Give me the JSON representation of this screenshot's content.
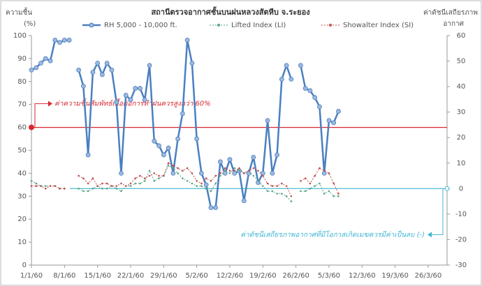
{
  "chart_data": {
    "type": "line",
    "title": "สถานีตรวจอากาศชั้นบนฝนหลวงสัตหีบ จ.ระยอง",
    "ylabel": [
      "ความชื้น",
      "(%)"
    ],
    "y2label": [
      "ค่าดัชนีเสถียรภาพ",
      "อากาศ"
    ],
    "x": [
      0,
      1,
      2,
      3,
      4,
      5,
      6,
      7,
      8,
      9,
      10,
      11,
      12,
      13,
      14,
      15,
      16,
      17,
      18,
      19,
      20,
      21,
      22,
      23,
      24,
      25,
      26,
      27,
      28,
      29,
      30,
      31,
      32,
      33,
      34,
      35,
      36,
      37,
      38,
      39,
      40,
      41,
      42,
      43,
      44,
      45,
      46,
      47,
      48,
      49,
      50,
      51,
      52,
      53,
      54,
      55,
      56,
      57,
      58,
      59,
      60,
      61,
      62,
      63,
      64,
      65
    ],
    "xlim": [
      0,
      88
    ],
    "xticks": [
      {
        "value": 0,
        "label": "1/1/60"
      },
      {
        "value": 7,
        "label": "8/1/60"
      },
      {
        "value": 14,
        "label": "15/1/60"
      },
      {
        "value": 21,
        "label": "22/1/60"
      },
      {
        "value": 28,
        "label": "29/1/60"
      },
      {
        "value": 35,
        "label": "5/2/60"
      },
      {
        "value": 42,
        "label": "12/2/60"
      },
      {
        "value": 49,
        "label": "19/2/60"
      },
      {
        "value": 56,
        "label": "26/2/60"
      },
      {
        "value": 63,
        "label": "5/3/60"
      },
      {
        "value": 70,
        "label": "12/3/60"
      },
      {
        "value": 77,
        "label": "19/3/60"
      },
      {
        "value": 84,
        "label": "26/3/60"
      }
    ],
    "ylim": [
      0,
      100
    ],
    "yticks": [
      0,
      10,
      20,
      30,
      40,
      50,
      60,
      70,
      80,
      90,
      100
    ],
    "y2lim": [
      -30,
      60
    ],
    "y2ticks": [
      -30,
      -20,
      -10,
      0,
      10,
      20,
      30,
      40,
      50,
      60
    ],
    "legend": "top",
    "series": [
      {
        "name": "RH 5,000 - 10,000 ft.",
        "color": "#4a7fc1",
        "axis": "y",
        "style": "solid",
        "values": [
          85,
          86,
          88,
          90,
          89,
          98,
          97,
          98,
          98,
          null,
          85,
          78,
          48,
          84,
          88,
          83,
          88,
          85,
          71,
          40,
          74,
          72,
          77,
          77,
          72,
          87,
          54,
          52,
          48,
          51,
          40,
          55,
          66,
          98,
          88,
          55,
          40,
          35,
          25,
          25,
          45,
          40,
          46,
          40,
          41,
          28,
          40,
          47,
          36,
          40,
          63,
          40,
          48,
          81,
          87,
          81,
          null,
          87,
          77,
          76,
          73,
          69,
          40,
          63,
          62,
          67
        ]
      },
      {
        "name": "Lifted Index (LI)",
        "color": "#5aa58a",
        "axis": "y2",
        "style": "dotted",
        "values": [
          3,
          2,
          1,
          1,
          1,
          1,
          0,
          0,
          null,
          null,
          0,
          -1,
          -1,
          0,
          1,
          0,
          0,
          1,
          0,
          -1,
          1,
          1,
          2,
          2,
          3,
          7,
          3,
          4,
          5,
          9,
          8,
          6,
          4,
          3,
          2,
          1,
          1,
          0,
          -1,
          2,
          5,
          7,
          6,
          8,
          7,
          6,
          7,
          5,
          3,
          1,
          -1,
          -1,
          -2,
          -2,
          -3,
          -5,
          null,
          -1,
          -1,
          0,
          1,
          2,
          -2,
          -1,
          -3,
          -3
        ]
      },
      {
        "name": "Showalter Index (SI)",
        "color": "#c0504d",
        "axis": "y2",
        "style": "dotted",
        "values": [
          1,
          1,
          1,
          0,
          1,
          1,
          0,
          0,
          null,
          null,
          5,
          4,
          2,
          4,
          1,
          2,
          2,
          1,
          1,
          2,
          1,
          2,
          4,
          5,
          4,
          5,
          6,
          5,
          5,
          10,
          9,
          8,
          7,
          8,
          6,
          3,
          2,
          4,
          3,
          5,
          6,
          8,
          7,
          7,
          8,
          6,
          7,
          8,
          7,
          5,
          2,
          1,
          1,
          2,
          1,
          -3,
          null,
          3,
          4,
          2,
          5,
          8,
          7,
          6,
          2,
          -2
        ]
      }
    ],
    "annotations": [
      {
        "text": "ค่าความชื้นสัมพัทธ์เอื้อต่อการทำฝนควรสูงกว่า 60%",
        "value": 60,
        "axis": "y",
        "color": "#d9282f"
      },
      {
        "text": "ค่าดัชนีเสถียรภาพอากาศที่มีโอกาสเกิดเมฆควรมีค่าเป็นลบ (-)",
        "value": 0,
        "axis": "y2",
        "color": "#3fb6d4"
      }
    ]
  }
}
